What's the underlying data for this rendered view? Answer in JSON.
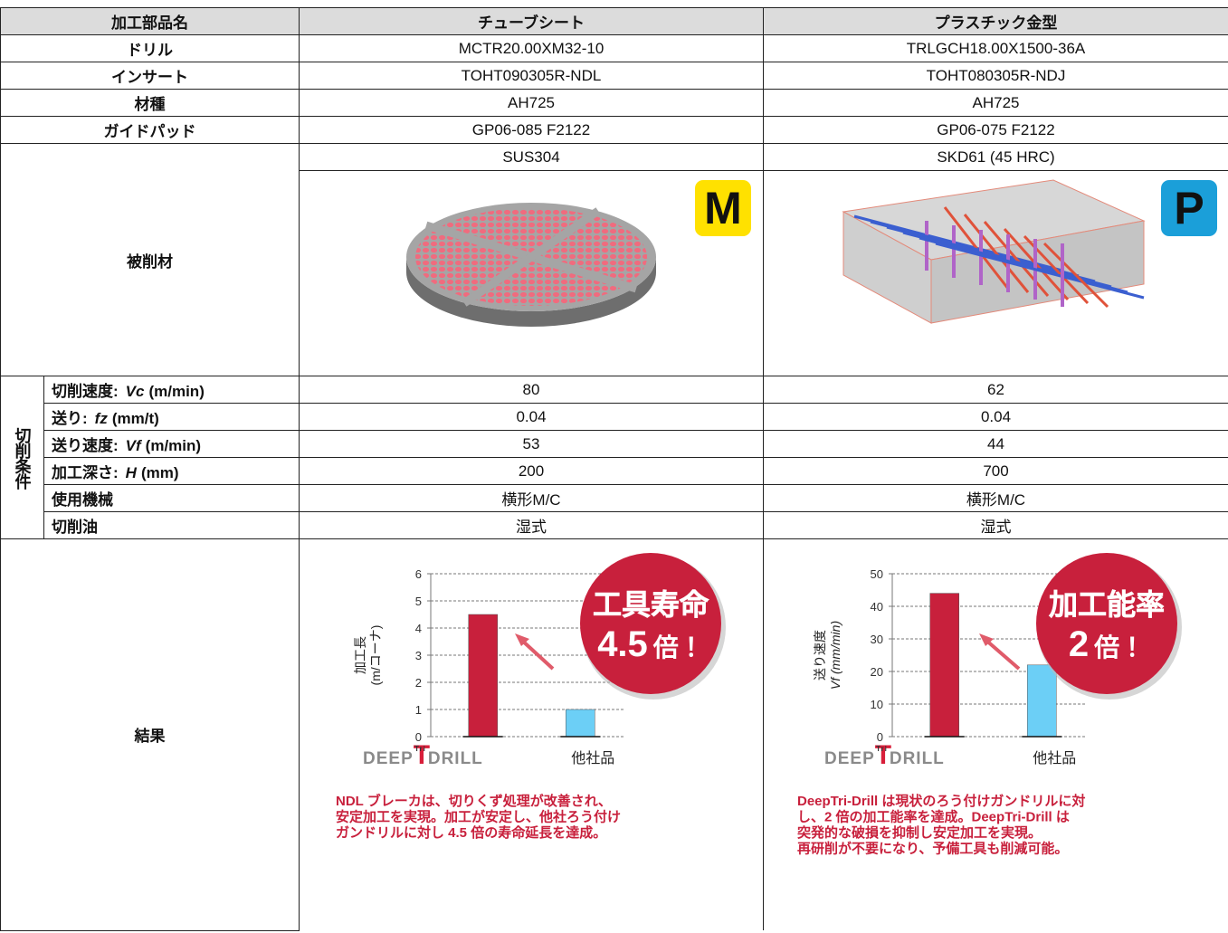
{
  "table": {
    "header": [
      "加工部品名",
      "チューブシート",
      "プラスチック金型"
    ],
    "rows": [
      [
        "ドリル",
        "MCTR20.00XM32-10",
        "TRLGCH18.00X1500-36A"
      ],
      [
        "インサート",
        "TOHT090305R-NDL",
        "TOHT080305R-NDJ"
      ],
      [
        "材種",
        "AH725",
        "AH725"
      ],
      [
        "ガイドパッド",
        "GP06-085 F2122",
        "GP06-075 F2122"
      ]
    ],
    "workpiece": {
      "label": "被削材",
      "materials": [
        "SUS304",
        "SKD61 (45 HRC)"
      ],
      "badges": [
        {
          "text": "M",
          "color": "#ffe100"
        },
        {
          "text": "P",
          "color": "#1b9fd9"
        }
      ]
    },
    "conditions": {
      "group_label": "切削条件",
      "rows": [
        {
          "name": "切削速度:",
          "symbol": "Vc",
          "unit": "(m/min)",
          "values": [
            80,
            62
          ]
        },
        {
          "name": "送り:",
          "symbol": "fz",
          "unit": "(mm/t)",
          "values": [
            0.04,
            0.04
          ]
        },
        {
          "name": "送り速度:",
          "symbol": "Vf",
          "unit": "(m/min)",
          "values": [
            53,
            44
          ]
        },
        {
          "name": "加工深さ:",
          "symbol": "H",
          "unit": "(mm)",
          "values": [
            200,
            700
          ]
        },
        {
          "name": "使用機械",
          "values": [
            "横形M/C",
            "横形M/C"
          ]
        },
        {
          "name": "切削油",
          "values": [
            "湿式",
            "湿式"
          ]
        }
      ]
    },
    "results": {
      "label": "結果"
    }
  },
  "chart_data": [
    {
      "type": "bar",
      "ylabel": [
        "加工長",
        "(m/コーナ)"
      ],
      "categories": [
        null,
        "他社品"
      ],
      "logo": [
        "DEEP",
        "T",
        "Tri",
        "DRILL"
      ],
      "values": [
        4.5,
        1
      ],
      "colors": [
        "#c8203c",
        "#6ccff6"
      ],
      "ylim": [
        0,
        6
      ],
      "yticks": [
        0,
        1,
        2,
        3,
        4,
        5,
        6
      ],
      "grid": true,
      "callout": [
        "工具寿命",
        "4.5",
        "倍！"
      ],
      "note": [
        "NDL ブレーカは、切りくず処理が改善され、",
        "安定加工を実現。加工が安定し、他社ろう付け",
        "ガンドリルに対し 4.5 倍の寿命延長を達成。"
      ]
    },
    {
      "type": "bar",
      "ylabel": [
        "送り速度",
        "Vf (mm/min)"
      ],
      "categories": [
        null,
        "他社品"
      ],
      "logo": [
        "DEEP",
        "T",
        "Tri",
        "DRILL"
      ],
      "values": [
        44,
        22
      ],
      "colors": [
        "#c8203c",
        "#6ccff6"
      ],
      "ylim": [
        0,
        50
      ],
      "yticks": [
        0,
        10,
        20,
        30,
        40,
        50
      ],
      "grid": true,
      "callout": [
        "加工能率",
        "2",
        "倍！"
      ],
      "note": [
        "DeepTri-Drill は現状のろう付けガンドリルに対",
        "し、2 倍の加工能率を達成。DeepTri-Drill は",
        "突発的な破損を抑制し安定加工を実現。",
        "再研削が不要になり、予備工具も削減可能。"
      ]
    }
  ]
}
